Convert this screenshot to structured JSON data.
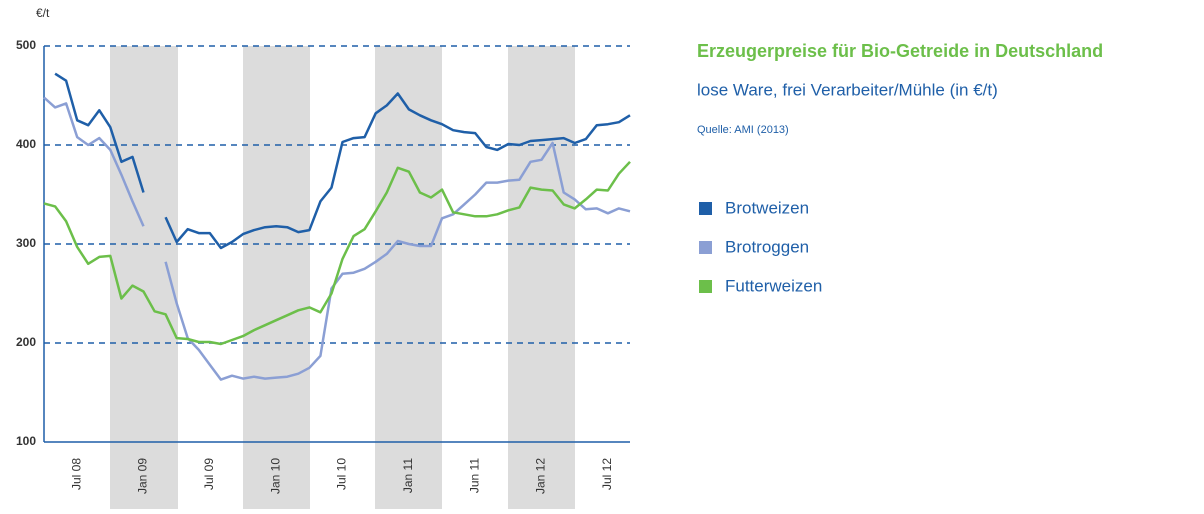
{
  "chart_data": {
    "type": "line",
    "title": "Erzeugerpreise für Bio-Getreide in Deutschland",
    "subtitle": "lose Ware, frei Verarbeiter/Mühle (in €/t)",
    "source": "Quelle: AMI (2013)",
    "y_label": "€/t",
    "categories": [
      null,
      null,
      null,
      "Jul 08",
      null,
      null,
      null,
      null,
      null,
      "Jan 09",
      null,
      null,
      null,
      null,
      null,
      "Jul 09",
      null,
      null,
      null,
      null,
      null,
      "Jan 10",
      null,
      null,
      null,
      null,
      null,
      "Jul 10",
      null,
      null,
      null,
      null,
      null,
      "Jan 11",
      null,
      null,
      null,
      null,
      null,
      "Jun 11",
      null,
      null,
      null,
      null,
      null,
      "Jan 12",
      null,
      null,
      null,
      null,
      null,
      "Jul 12",
      null,
      null
    ],
    "ylim": [
      100,
      500
    ],
    "yticks": [
      100,
      200,
      300,
      400,
      500
    ],
    "grid": true,
    "legend": "right",
    "series": [
      {
        "name": "Brotweizen",
        "color": "#1f5fa8",
        "values": [
          null,
          472,
          465,
          425,
          420,
          435,
          418,
          383,
          388,
          352,
          null,
          327,
          302,
          315,
          311,
          311,
          296,
          302,
          310,
          314,
          317,
          318,
          317,
          312,
          314,
          343,
          357,
          403,
          407,
          408,
          432,
          440,
          452,
          436,
          430,
          425,
          421,
          415,
          413,
          412,
          398,
          395,
          401,
          400,
          404,
          405,
          406,
          407,
          402,
          406,
          420,
          421,
          423,
          430
        ]
      },
      {
        "name": "Brotroggen",
        "color": "#8b9fd4",
        "values": [
          448,
          438,
          442,
          408,
          400,
          407,
          395,
          370,
          343,
          318,
          null,
          282,
          240,
          205,
          193,
          178,
          163,
          167,
          164,
          166,
          164,
          165,
          166,
          169,
          175,
          187,
          255,
          270,
          271,
          275,
          282,
          290,
          303,
          300,
          298,
          298,
          326,
          330,
          340,
          350,
          362,
          362,
          364,
          365,
          383,
          385,
          402,
          352,
          345,
          335,
          336,
          331,
          336,
          333
        ]
      },
      {
        "name": "Futterweizen",
        "color": "#6cbf4a",
        "values": [
          341,
          338,
          323,
          297,
          280,
          287,
          288,
          245,
          258,
          252,
          232,
          229,
          205,
          204,
          201,
          201,
          199,
          203,
          207,
          213,
          218,
          223,
          228,
          233,
          236,
          231,
          250,
          285,
          308,
          315,
          333,
          352,
          377,
          373,
          352,
          347,
          355,
          332,
          330,
          328,
          328,
          330,
          334,
          337,
          357,
          355,
          354,
          340,
          336,
          345,
          355,
          354,
          371,
          383
        ]
      }
    ]
  }
}
